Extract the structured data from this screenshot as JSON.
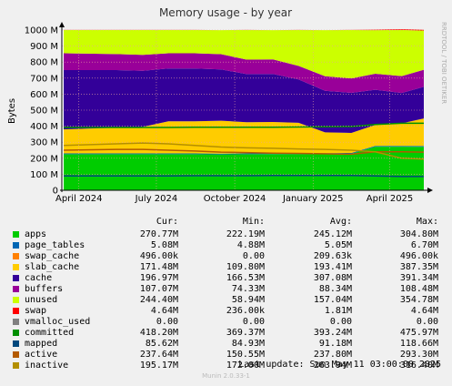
{
  "colors": {
    "background": "#f0f0f0",
    "plot_background": "#ffffff",
    "grid": "#e0a0a0",
    "axis": "#000000"
  },
  "chart_data": {
    "type": "area",
    "title": "Memory usage - by year",
    "ylabel": "Bytes",
    "watermark": "RRDTOOL / TOBI OETIKER",
    "ylim": [
      0,
      1000
    ],
    "y_ticks": [
      "0",
      "100 M",
      "200 M",
      "300 M",
      "400 M",
      "500 M",
      "600 M",
      "700 M",
      "800 M",
      "900 M",
      "1000 M"
    ],
    "x_ticks": [
      "April 2024",
      "July 2024",
      "October 2024",
      "January 2025",
      "April 2025"
    ],
    "x_dates": [
      "2024-04",
      "2024-05",
      "2024-06",
      "2024-07",
      "2024-08",
      "2024-09",
      "2024-10",
      "2024-11",
      "2024-12",
      "2025-01",
      "2025-02",
      "2025-03",
      "2025-04",
      "2025-05"
    ],
    "stacked_series": [
      {
        "name": "apps",
        "color": "#00cc00",
        "values": [
          225,
          225,
          225,
          225,
          225,
          224,
          225,
          226,
          226,
          226,
          228,
          272,
          272,
          271
        ]
      },
      {
        "name": "page_tables",
        "color": "#0066b3",
        "values": [
          5,
          5,
          5,
          5,
          5,
          5,
          5,
          5,
          5,
          5,
          5,
          5,
          5,
          5
        ]
      },
      {
        "name": "swap_cache",
        "color": "#ff8000",
        "values": [
          0.2,
          0.2,
          0.2,
          0.2,
          0.2,
          0.2,
          0.2,
          0.2,
          0.2,
          0.2,
          0.2,
          0.3,
          0.5,
          0.5
        ]
      },
      {
        "name": "slab_cache",
        "color": "#ffcc00",
        "values": [
          150,
          160,
          165,
          200,
          200,
          205,
          195,
          195,
          190,
          130,
          125,
          130,
          140,
          172
        ]
      },
      {
        "name": "cache",
        "color": "#330099",
        "values": [
          370,
          360,
          350,
          330,
          330,
          320,
          300,
          300,
          270,
          260,
          250,
          220,
          190,
          197
        ]
      },
      {
        "name": "buffers",
        "color": "#990099",
        "values": [
          105,
          100,
          100,
          95,
          95,
          95,
          90,
          90,
          85,
          90,
          90,
          100,
          105,
          107
        ]
      },
      {
        "name": "unused",
        "color": "#ccff00",
        "values": [
          145,
          150,
          155,
          145,
          145,
          150,
          185,
          183,
          224,
          288,
          302,
          272,
          288,
          244
        ]
      },
      {
        "name": "swap",
        "color": "#ff0000",
        "values": [
          0.2,
          0.2,
          0.2,
          0.2,
          0.2,
          0.2,
          0.2,
          0.2,
          0.2,
          0.2,
          0.2,
          3,
          4.6,
          4.6
        ]
      }
    ],
    "line_series": [
      {
        "name": "committed",
        "color": "#00cc00",
        "values": [
          392,
          392,
          392,
          392,
          393,
          394,
          394,
          394,
          395,
          396,
          398,
          410,
          418,
          418
        ]
      },
      {
        "name": "mapped",
        "color": "#0066b3",
        "values": [
          90,
          90,
          90,
          90,
          91,
          91,
          91,
          92,
          92,
          92,
          92,
          90,
          86,
          86
        ]
      },
      {
        "name": "active",
        "color": "#ff8000",
        "values": [
          250,
          255,
          255,
          250,
          245,
          238,
          235,
          232,
          230,
          228,
          225,
          240,
          240,
          238
        ]
      },
      {
        "name": "inactive",
        "color": "#ffcc00",
        "values": [
          280,
          290,
          295,
          290,
          280,
          270,
          265,
          262,
          258,
          255,
          250,
          240,
          200,
          195
        ]
      }
    ]
  },
  "legend": {
    "headers": {
      "cur": "Cur:",
      "min": "Min:",
      "avg": "Avg:",
      "max": "Max:"
    },
    "rows": [
      {
        "name": "apps",
        "color": "#00cc00",
        "cur": "270.77M",
        "min": "222.19M",
        "avg": "245.12M",
        "max": "304.80M"
      },
      {
        "name": "page_tables",
        "color": "#0066b3",
        "cur": "5.08M",
        "min": "4.88M",
        "avg": "5.05M",
        "max": "6.70M"
      },
      {
        "name": "swap_cache",
        "color": "#ff8000",
        "cur": "496.00k",
        "min": "0.00",
        "avg": "209.63k",
        "max": "496.00k"
      },
      {
        "name": "slab_cache",
        "color": "#ffcc00",
        "cur": "171.48M",
        "min": "109.80M",
        "avg": "193.41M",
        "max": "387.35M"
      },
      {
        "name": "cache",
        "color": "#330099",
        "cur": "196.97M",
        "min": "166.53M",
        "avg": "307.08M",
        "max": "391.34M"
      },
      {
        "name": "buffers",
        "color": "#990099",
        "cur": "107.07M",
        "min": "74.33M",
        "avg": "88.34M",
        "max": "108.48M"
      },
      {
        "name": "unused",
        "color": "#ccff00",
        "cur": "244.40M",
        "min": "58.94M",
        "avg": "157.04M",
        "max": "354.78M"
      },
      {
        "name": "swap",
        "color": "#ff0000",
        "cur": "4.64M",
        "min": "236.00k",
        "avg": "1.81M",
        "max": "4.64M"
      },
      {
        "name": "vmalloc_used",
        "color": "#808080",
        "cur": "0.00",
        "min": "0.00",
        "avg": "0.00",
        "max": "0.00"
      },
      {
        "name": "committed",
        "color": "#008f00",
        "cur": "418.20M",
        "min": "369.37M",
        "avg": "393.24M",
        "max": "475.97M"
      },
      {
        "name": "mapped",
        "color": "#00487d",
        "cur": "85.62M",
        "min": "84.93M",
        "avg": "91.18M",
        "max": "118.66M"
      },
      {
        "name": "active",
        "color": "#b35a00",
        "cur": "237.64M",
        "min": "150.55M",
        "avg": "237.80M",
        "max": "293.30M"
      },
      {
        "name": "inactive",
        "color": "#b38f00",
        "cur": "195.17M",
        "min": "172.00M",
        "avg": "263.94M",
        "max": "316.40M"
      }
    ]
  },
  "footer": {
    "last_update": "Last update:  Sun May 11 03:00:00 2025",
    "generator": "Munin 2.0.33-1"
  }
}
